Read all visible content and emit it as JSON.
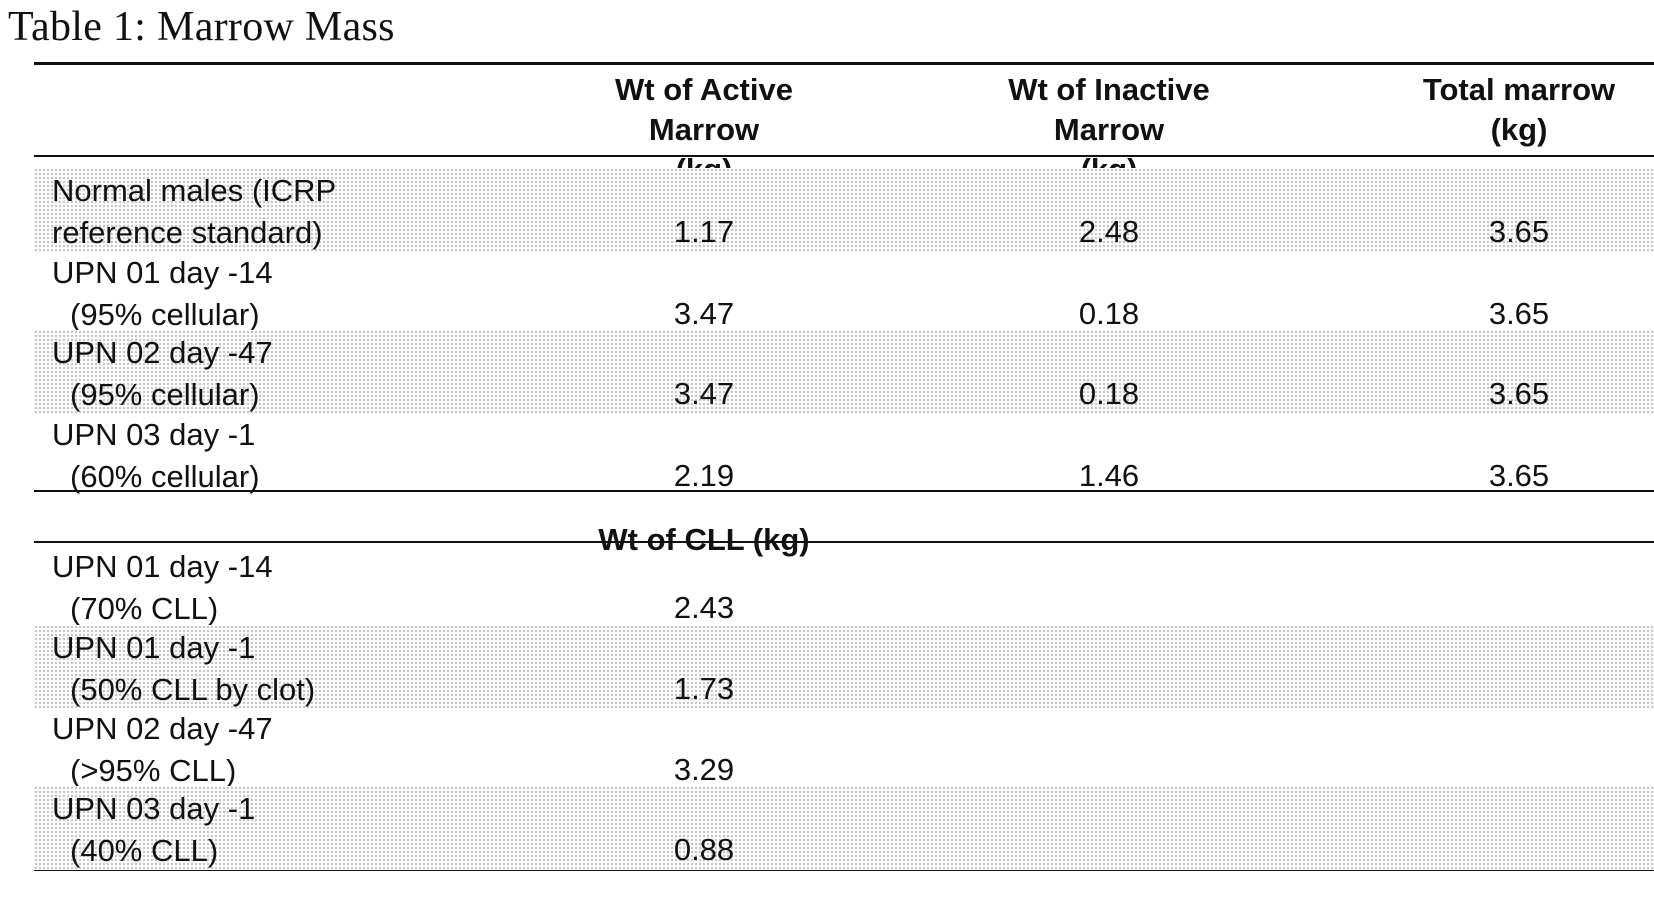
{
  "caption": "Table 1: Marrow Mass",
  "columns": [
    {
      "line1": "Wt of Active Marrow",
      "line2": "(kg)"
    },
    {
      "line1": "Wt of Inactive Marrow",
      "line2": "(kg)"
    },
    {
      "line1": "Total marrow",
      "line2": "(kg)"
    }
  ],
  "rows": [
    {
      "label1": "Normal males (ICRP",
      "label2": "reference standard)",
      "active": "1.17",
      "inactive": "2.48",
      "total": "3.65"
    },
    {
      "label1": "UPN 01 day -14",
      "label2": "(95% cellular)",
      "active": "3.47",
      "inactive": "0.18",
      "total": "3.65"
    },
    {
      "label1": "UPN 02 day -47",
      "label2": "(95% cellular)",
      "active": "3.47",
      "inactive": "0.18",
      "total": "3.65"
    },
    {
      "label1": "UPN 03 day -1",
      "label2": "(60% cellular)",
      "active": "2.19",
      "inactive": "1.46",
      "total": "3.65"
    }
  ],
  "cll_header": "Wt of CLL (kg)",
  "cll_rows": [
    {
      "label1": "UPN 01 day -14",
      "label2": "(70% CLL)",
      "value": "2.43"
    },
    {
      "label1": "UPN 01 day -1",
      "label2": "(50% CLL by clot)",
      "value": "1.73"
    },
    {
      "label1": "UPN 02 day -47",
      "label2": "(>95% CLL)",
      "value": "3.29"
    },
    {
      "label1": "UPN 03 day -1",
      "label2": "(40% CLL)",
      "value": "0.88"
    }
  ]
}
